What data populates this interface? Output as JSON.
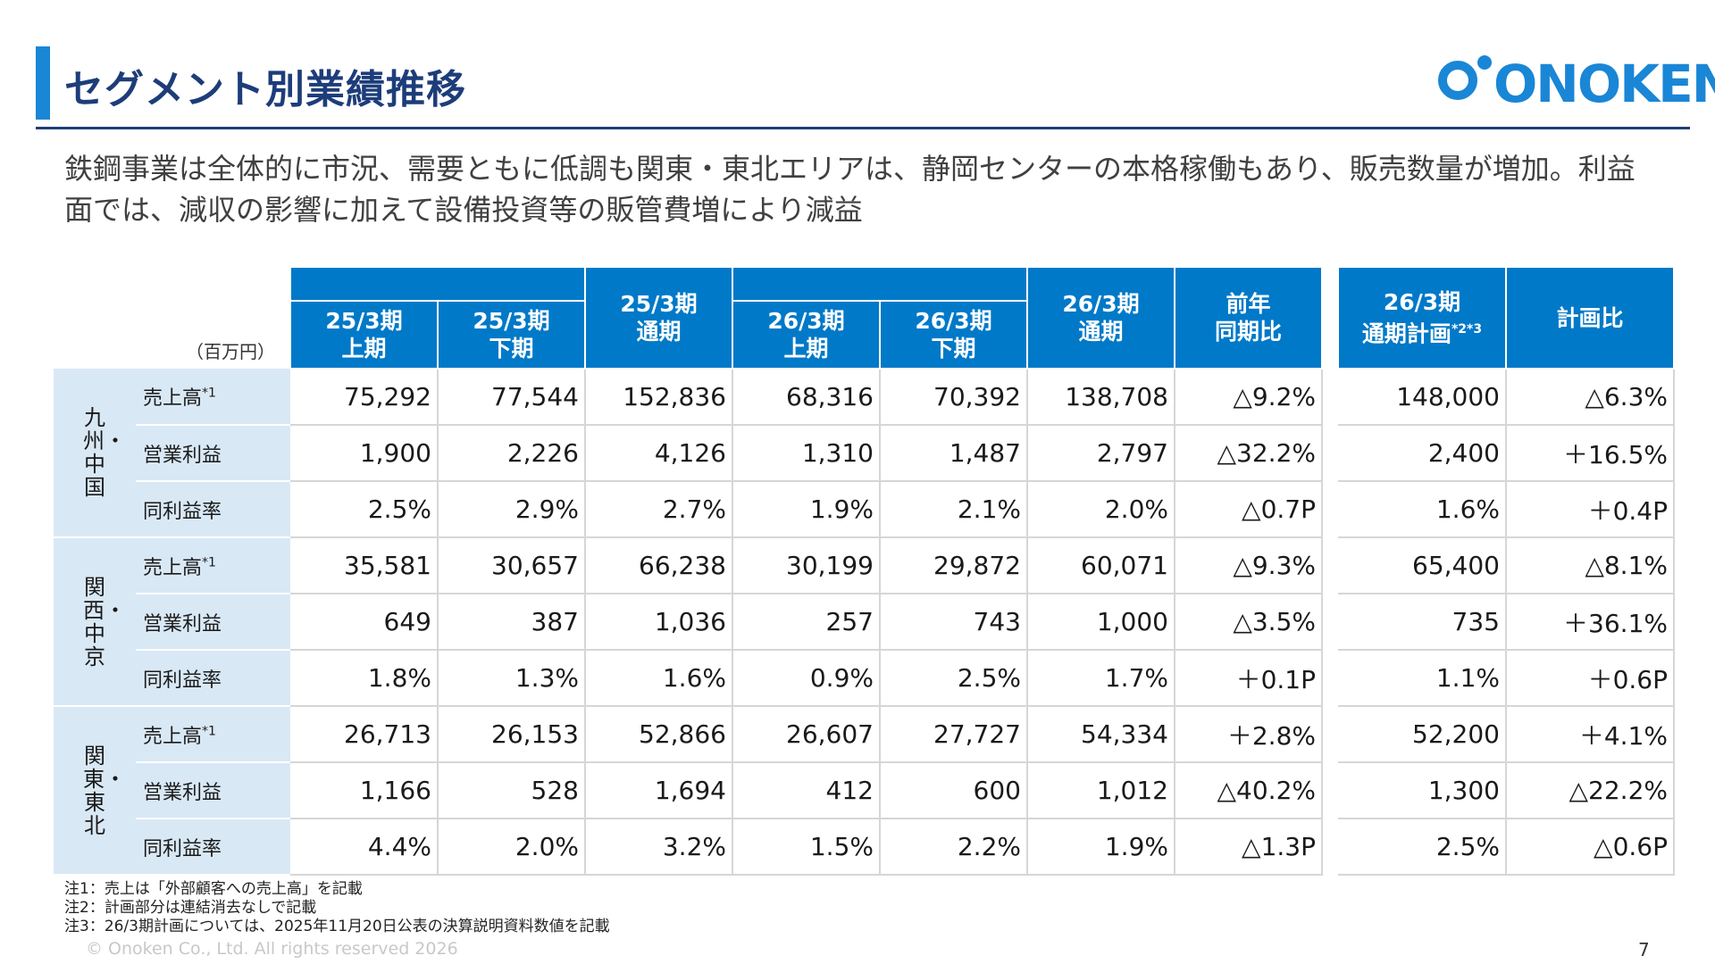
{
  "title": "セグメント別業績推移",
  "logo_text": "ONOKEN",
  "summary": "鉄鋼事業は全体的に市況、需要ともに低調も関東・東北エリアは、静岡センターの本格稼働もあり、販売数量が増加。利益面では、減収の影響に加えて設備投資等の販管費増により減益",
  "unit": "（百万円）",
  "headers": {
    "h1": "25/3期\n上期",
    "h2": "25/3期\n下期",
    "h3": "25/3期\n通期",
    "h4": "26/3期\n上期",
    "h5": "26/3期\n下期",
    "h6": "26/3期\n通期",
    "h7": "前年\n同期比",
    "h8": "26/3期\n通期計画",
    "h8_sup": "*2*3",
    "h9": "計画比"
  },
  "segments": [
    {
      "name": "九州・中国",
      "rows": [
        {
          "label": "売上高",
          "sup": "*1",
          "values": [
            "75,292",
            "77,544",
            "152,836",
            "68,316",
            "70,392",
            "138,708",
            "△9.2%",
            "148,000",
            "△6.3%"
          ]
        },
        {
          "label": "営業利益",
          "sup": "",
          "values": [
            "1,900",
            "2,226",
            "4,126",
            "1,310",
            "1,487",
            "2,797",
            "△32.2%",
            "2,400",
            "＋16.5%"
          ]
        },
        {
          "label": "同利益率",
          "sup": "",
          "values": [
            "2.5%",
            "2.9%",
            "2.7%",
            "1.9%",
            "2.1%",
            "2.0%",
            "△0.7P",
            "1.6%",
            "＋0.4P"
          ]
        }
      ]
    },
    {
      "name": "関西・中京",
      "rows": [
        {
          "label": "売上高",
          "sup": "*1",
          "values": [
            "35,581",
            "30,657",
            "66,238",
            "30,199",
            "29,872",
            "60,071",
            "△9.3%",
            "65,400",
            "△8.1%"
          ]
        },
        {
          "label": "営業利益",
          "sup": "",
          "values": [
            "649",
            "387",
            "1,036",
            "257",
            "743",
            "1,000",
            "△3.5%",
            "735",
            "＋36.1%"
          ]
        },
        {
          "label": "同利益率",
          "sup": "",
          "values": [
            "1.8%",
            "1.3%",
            "1.6%",
            "0.9%",
            "2.5%",
            "1.7%",
            "＋0.1P",
            "1.1%",
            "＋0.6P"
          ]
        }
      ]
    },
    {
      "name": "関東・東北",
      "rows": [
        {
          "label": "売上高",
          "sup": "*1",
          "values": [
            "26,713",
            "26,153",
            "52,866",
            "26,607",
            "27,727",
            "54,334",
            "＋2.8%",
            "52,200",
            "＋4.1%"
          ]
        },
        {
          "label": "営業利益",
          "sup": "",
          "values": [
            "1,166",
            "528",
            "1,694",
            "412",
            "600",
            "1,012",
            "△40.2%",
            "1,300",
            "△22.2%"
          ]
        },
        {
          "label": "同利益率",
          "sup": "",
          "values": [
            "4.4%",
            "2.0%",
            "3.2%",
            "1.5%",
            "2.2%",
            "1.9%",
            "△1.3P",
            "2.5%",
            "△0.6P"
          ]
        }
      ]
    }
  ],
  "notes": [
    "注1：売上は「外部顧客への売上高」を記載",
    "注2：計画部分は連結消去なしで記載",
    "注3：26/3期計画については、2025年11月20日公表の決算説明資料数値を記載"
  ],
  "copyright": "© Onoken Co., Ltd. All rights reserved 2026",
  "page_number": "7"
}
